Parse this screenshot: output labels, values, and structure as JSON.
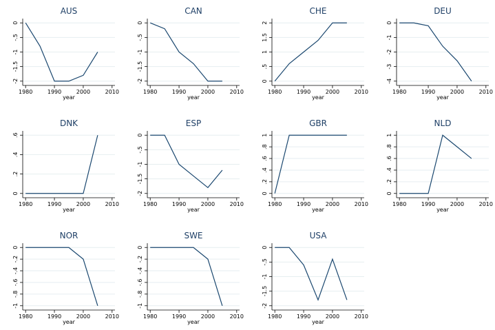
{
  "chart_data": [
    {
      "type": "line",
      "title": "AUS",
      "x_label": "year",
      "x": [
        1980,
        1985,
        1990,
        1995,
        2000,
        2005
      ],
      "values": [
        0,
        -0.8,
        -2,
        -2,
        -1.8,
        -1
      ],
      "color": "#1a476f",
      "xlim": [
        1979,
        2011
      ],
      "xticks": [
        1980,
        1990,
        2000,
        2010
      ],
      "ylim": [
        -2.1,
        0.1
      ],
      "yticks": [
        0,
        {
          "value": -0.5,
          "label": "-.5"
        },
        -1,
        -1.5,
        -2
      ],
      "grid": true
    },
    {
      "type": "line",
      "title": "CAN",
      "x_label": "year",
      "x": [
        1980,
        1985,
        1990,
        1995,
        2000,
        2005
      ],
      "values": [
        0,
        -0.2,
        -1,
        -1.4,
        -2,
        -2
      ],
      "color": "#1a476f",
      "xlim": [
        1979,
        2011
      ],
      "xticks": [
        1980,
        1990,
        2000,
        2010
      ],
      "ylim": [
        -2.1,
        0.1
      ],
      "yticks": [
        0,
        {
          "value": -0.5,
          "label": "-.5"
        },
        -1,
        -1.5,
        -2
      ],
      "grid": true
    },
    {
      "type": "line",
      "title": "CHE",
      "x_label": "year",
      "x": [
        1980,
        1985,
        1990,
        1995,
        2000,
        2005
      ],
      "values": [
        0,
        0.6,
        1,
        1.4,
        2,
        2
      ],
      "color": "#1a476f",
      "xlim": [
        1979,
        2011
      ],
      "xticks": [
        1980,
        1990,
        2000,
        2010
      ],
      "ylim": [
        -0.1,
        2.1
      ],
      "yticks": [
        0,
        {
          "value": 0.5,
          "label": ".5"
        },
        1,
        1.5,
        2
      ],
      "grid": true
    },
    {
      "type": "line",
      "title": "DEU",
      "x_label": "year",
      "x": [
        1980,
        1985,
        1990,
        1995,
        2000,
        2005
      ],
      "values": [
        0,
        0,
        -0.2,
        -1.6,
        -2.6,
        -4
      ],
      "color": "#1a476f",
      "xlim": [
        1979,
        2011
      ],
      "xticks": [
        1980,
        1990,
        2000,
        2010
      ],
      "ylim": [
        -4.2,
        0.2
      ],
      "yticks": [
        0,
        -1,
        -2,
        -3,
        -4
      ],
      "grid": true
    },
    {
      "type": "line",
      "title": "DNK",
      "x_label": "year",
      "x": [
        1980,
        1985,
        1990,
        1995,
        2000,
        2005
      ],
      "values": [
        0,
        0,
        0,
        0,
        0,
        0.6
      ],
      "color": "#1a476f",
      "xlim": [
        1979,
        2011
      ],
      "xticks": [
        1980,
        1990,
        2000,
        2010
      ],
      "ylim": [
        -0.03,
        0.63
      ],
      "yticks": [
        0,
        {
          "value": 0.2,
          "label": ".2"
        },
        {
          "value": 0.4,
          "label": ".4"
        },
        {
          "value": 0.6,
          "label": ".6"
        }
      ],
      "grid": true
    },
    {
      "type": "line",
      "title": "ESP",
      "x_label": "year",
      "x": [
        1980,
        1985,
        1990,
        1995,
        2000,
        2005
      ],
      "values": [
        0,
        0,
        -1,
        -1.4,
        -1.8,
        -1.2
      ],
      "color": "#1a476f",
      "xlim": [
        1979,
        2011
      ],
      "xticks": [
        1980,
        1990,
        2000,
        2010
      ],
      "ylim": [
        -2.1,
        0.1
      ],
      "yticks": [
        0,
        {
          "value": -0.5,
          "label": "-.5"
        },
        -1,
        -1.5,
        -2
      ],
      "grid": true
    },
    {
      "type": "line",
      "title": "GBR",
      "x_label": "year",
      "x": [
        1980,
        1985,
        1990,
        1995,
        2000,
        2005
      ],
      "values": [
        0,
        1,
        1,
        1,
        1,
        1
      ],
      "color": "#1a476f",
      "xlim": [
        1979,
        2011
      ],
      "xticks": [
        1980,
        1990,
        2000,
        2010
      ],
      "ylim": [
        -0.05,
        1.05
      ],
      "yticks": [
        0,
        {
          "value": 0.2,
          "label": ".2"
        },
        {
          "value": 0.4,
          "label": ".4"
        },
        {
          "value": 0.6,
          "label": ".6"
        },
        {
          "value": 0.8,
          "label": ".8"
        },
        1
      ],
      "grid": true
    },
    {
      "type": "line",
      "title": "NLD",
      "x_label": "year",
      "x": [
        1980,
        1985,
        1990,
        1995,
        2000,
        2005
      ],
      "values": [
        0,
        0,
        0,
        1,
        0.8,
        0.6
      ],
      "color": "#1a476f",
      "xlim": [
        1979,
        2011
      ],
      "xticks": [
        1980,
        1990,
        2000,
        2010
      ],
      "ylim": [
        -0.05,
        1.05
      ],
      "yticks": [
        0,
        {
          "value": 0.2,
          "label": ".2"
        },
        {
          "value": 0.4,
          "label": ".4"
        },
        {
          "value": 0.6,
          "label": ".6"
        },
        {
          "value": 0.8,
          "label": ".8"
        },
        1
      ],
      "grid": true
    },
    {
      "type": "line",
      "title": "NOR",
      "x_label": "year",
      "x": [
        1980,
        1985,
        1990,
        1995,
        2000,
        2005
      ],
      "values": [
        0,
        0,
        0,
        0,
        -0.2,
        -1
      ],
      "color": "#1a476f",
      "xlim": [
        1979,
        2011
      ],
      "xticks": [
        1980,
        1990,
        2000,
        2010
      ],
      "ylim": [
        -1.05,
        0.05
      ],
      "yticks": [
        0,
        {
          "value": -0.2,
          "label": "-.2"
        },
        {
          "value": -0.4,
          "label": "-.4"
        },
        {
          "value": -0.6,
          "label": "-.6"
        },
        {
          "value": -0.8,
          "label": "-.8"
        },
        -1
      ],
      "grid": true
    },
    {
      "type": "line",
      "title": "SWE",
      "x_label": "year",
      "x": [
        1980,
        1985,
        1990,
        1995,
        2000,
        2005
      ],
      "values": [
        0,
        0,
        0,
        0,
        -0.2,
        -1
      ],
      "color": "#1a476f",
      "xlim": [
        1979,
        2011
      ],
      "xticks": [
        1980,
        1990,
        2000,
        2010
      ],
      "ylim": [
        -1.05,
        0.05
      ],
      "yticks": [
        0,
        {
          "value": -0.2,
          "label": "-.2"
        },
        {
          "value": -0.4,
          "label": "-.4"
        },
        {
          "value": -0.6,
          "label": "-.6"
        },
        {
          "value": -0.8,
          "label": "-.8"
        },
        -1
      ],
      "grid": true
    },
    {
      "type": "line",
      "title": "USA",
      "x_label": "year",
      "x": [
        1980,
        1985,
        1990,
        1995,
        2000,
        2005
      ],
      "values": [
        0,
        0,
        -0.6,
        -1.8,
        -0.4,
        -1.8
      ],
      "color": "#1a476f",
      "xlim": [
        1979,
        2011
      ],
      "xticks": [
        1980,
        1990,
        2000,
        2010
      ],
      "ylim": [
        -2.1,
        0.1
      ],
      "yticks": [
        0,
        {
          "value": -0.5,
          "label": "-.5"
        },
        -1,
        -1.5,
        -2
      ],
      "grid": true
    }
  ]
}
